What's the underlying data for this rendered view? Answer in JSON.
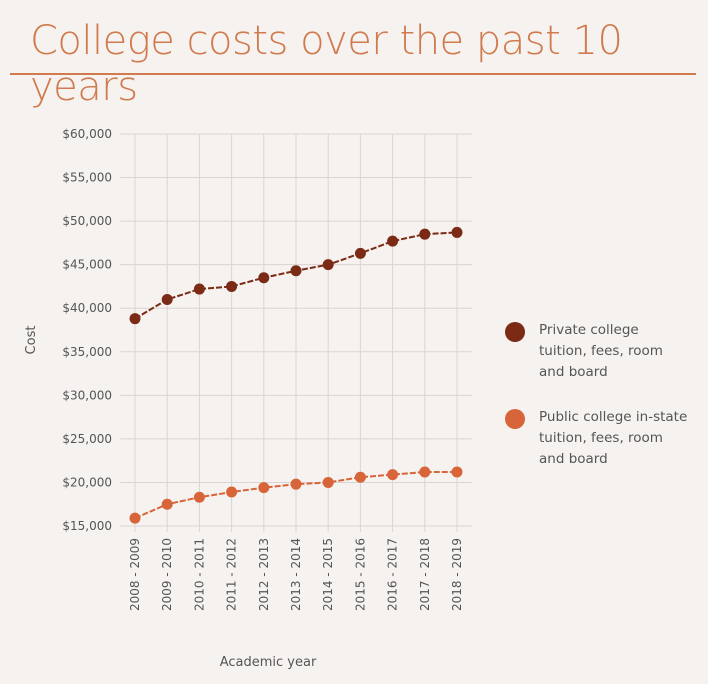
{
  "title": "College costs  over the past 10 years",
  "colors": {
    "title": "#d07a4e",
    "private": "#7a2a15",
    "public": "#d8643a",
    "grid": "#d9d5d2",
    "text": "#555555"
  },
  "chart_data": {
    "type": "line",
    "title": "College costs  over the past 10 years",
    "xlabel": "Academic year",
    "ylabel": "Cost",
    "ylim": [
      15000,
      60000
    ],
    "yticks": [
      15000,
      20000,
      25000,
      30000,
      35000,
      40000,
      45000,
      50000,
      55000,
      60000
    ],
    "ytick_labels": [
      "$15,000",
      "$20,000",
      "$25,000",
      "$30,000",
      "$35,000",
      "$40,000",
      "$45,000",
      "$50,000",
      "$55,000",
      "$60,000"
    ],
    "categories": [
      "2008 - 2009",
      "2009 - 2010",
      "2010 - 2011",
      "2011 - 2012",
      "2012 - 2013",
      "2013 - 2014",
      "2014 - 2015",
      "2015 - 2016",
      "2016 - 2017",
      "2017 - 2018",
      "2018 - 2019"
    ],
    "grid": true,
    "legend_position": "right",
    "series": [
      {
        "name": "Private college tuition, fees, room and board",
        "color": "#7a2a15",
        "values": [
          38800,
          41000,
          42200,
          42500,
          43500,
          44300,
          45000,
          46300,
          47700,
          48500,
          48700
        ]
      },
      {
        "name": "Public college in-state tuition, fees, room and board",
        "color": "#d8643a",
        "values": [
          15900,
          17500,
          18300,
          18900,
          19400,
          19800,
          20000,
          20600,
          20900,
          21200,
          21200
        ]
      }
    ]
  }
}
